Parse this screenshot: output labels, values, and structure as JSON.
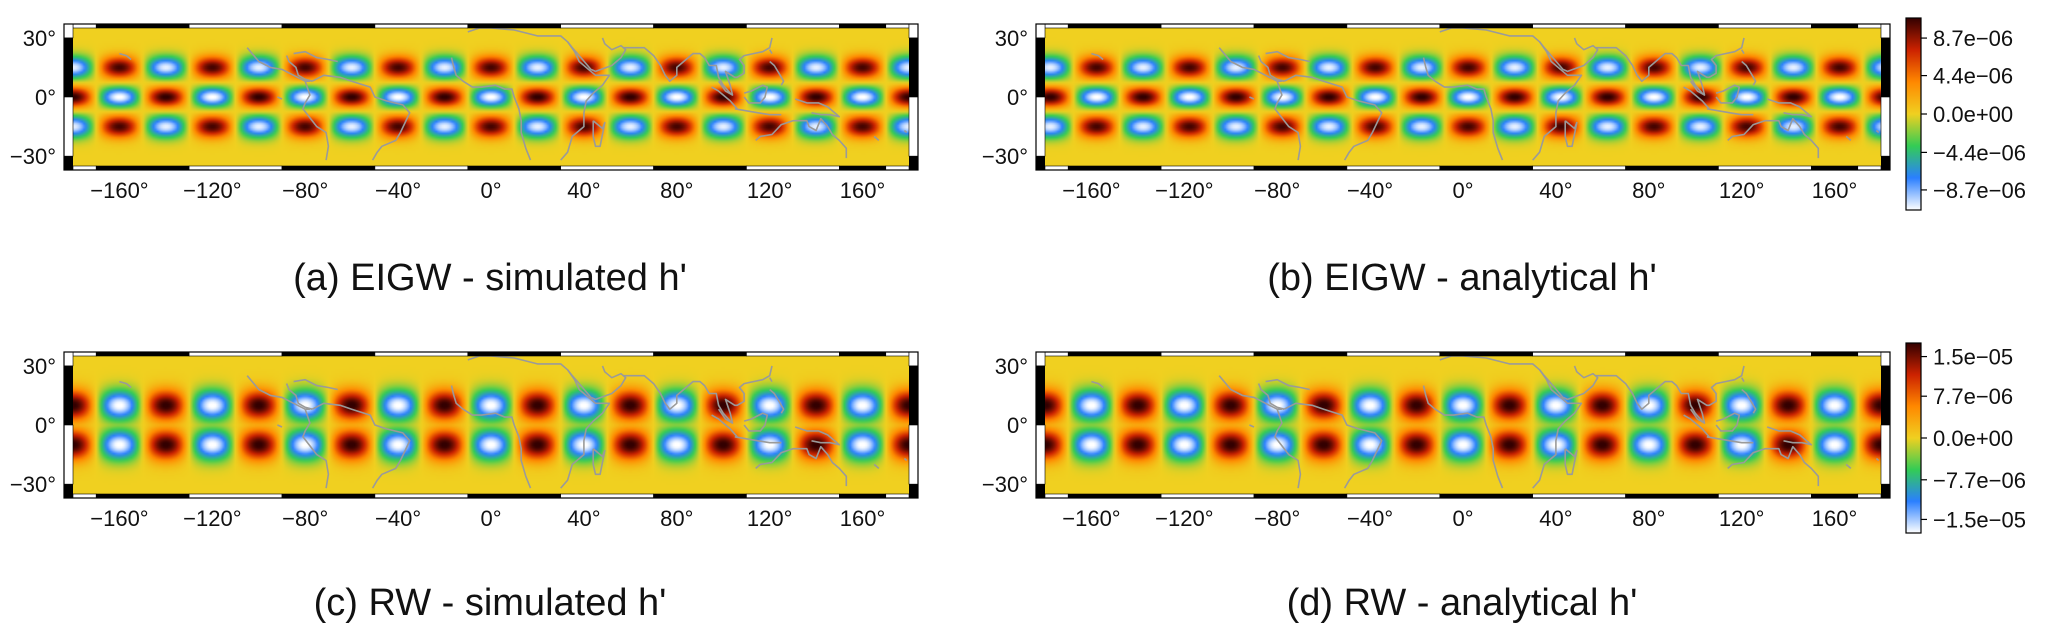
{
  "colors": {
    "colormap": [
      "#ffffff",
      "#2a7fff",
      "#33cc55",
      "#f0d020",
      "#ff8800",
      "#cc2200",
      "#330000"
    ],
    "coastline": "#9a9a9a",
    "frame": "#000000",
    "background": "#ffffff"
  },
  "chart_data": [
    {
      "type": "heatmap",
      "title": "(a) EIGW - simulated h'",
      "projection": "equirectangular",
      "mode": "EIGW",
      "wavenumber": 9,
      "phase_deg": 0,
      "xlim": [
        -180,
        180
      ],
      "ylim": [
        -35,
        35
      ],
      "x_ticks": [
        -160,
        -120,
        -80,
        -40,
        0,
        40,
        80,
        120,
        160
      ],
      "x_tick_labels": [
        "−160°",
        "−120°",
        "−80°",
        "−40°",
        "0°",
        "40°",
        "80°",
        "120°",
        "160°"
      ],
      "y_ticks": [
        30,
        0,
        -30
      ],
      "y_tick_labels": [
        "30°",
        "0°",
        "−30°"
      ],
      "colorbar": null
    },
    {
      "type": "heatmap",
      "title": "(b) EIGW - analytical h'",
      "projection": "equirectangular",
      "mode": "EIGW",
      "wavenumber": 9,
      "phase_deg": 20,
      "xlim": [
        -180,
        180
      ],
      "ylim": [
        -35,
        35
      ],
      "x_ticks": [
        -160,
        -120,
        -80,
        -40,
        0,
        40,
        80,
        120,
        160
      ],
      "x_tick_labels": [
        "−160°",
        "−120°",
        "−80°",
        "−40°",
        "0°",
        "40°",
        "80°",
        "120°",
        "160°"
      ],
      "y_ticks": [
        30,
        0,
        -30
      ],
      "y_tick_labels": [
        "30°",
        "0°",
        "−30°"
      ],
      "colorbar": {
        "ticks": [
          8.7e-06,
          4.4e-06,
          0.0,
          -4.4e-06,
          -8.7e-06
        ],
        "tick_labels": [
          "8.7e−06",
          "4.4e−06",
          "0.0e+00",
          "−4.4e−06",
          "−8.7e−06"
        ],
        "range": [
          -1.1e-05,
          1.1e-05
        ]
      }
    },
    {
      "type": "heatmap",
      "title": "(c) RW  - simulated h'",
      "projection": "equirectangular",
      "mode": "RW",
      "wavenumber": 9,
      "phase_deg": 0,
      "xlim": [
        -180,
        180
      ],
      "ylim": [
        -35,
        35
      ],
      "x_ticks": [
        -160,
        -120,
        -80,
        -40,
        0,
        40,
        80,
        120,
        160
      ],
      "x_tick_labels": [
        "−160°",
        "−120°",
        "−80°",
        "−40°",
        "0°",
        "40°",
        "80°",
        "120°",
        "160°"
      ],
      "y_ticks": [
        30,
        0,
        -30
      ],
      "y_tick_labels": [
        "30°",
        "0°",
        "−30°"
      ],
      "colorbar": null
    },
    {
      "type": "heatmap",
      "title": "(d) RW - analytical h'",
      "projection": "equirectangular",
      "mode": "RW",
      "wavenumber": 9,
      "phase_deg": 0,
      "xlim": [
        -180,
        180
      ],
      "ylim": [
        -35,
        35
      ],
      "x_ticks": [
        -160,
        -120,
        -80,
        -40,
        0,
        40,
        80,
        120,
        160
      ],
      "x_tick_labels": [
        "−160°",
        "−120°",
        "−80°",
        "−40°",
        "0°",
        "40°",
        "80°",
        "120°",
        "160°"
      ],
      "y_ticks": [
        30,
        0,
        -30
      ],
      "y_tick_labels": [
        "30°",
        "0°",
        "−30°"
      ],
      "colorbar": {
        "ticks": [
          1.5e-05,
          7.7e-06,
          0.0,
          -7.7e-06,
          -1.5e-05
        ],
        "tick_labels": [
          "1.5e−05",
          "7.7e−06",
          "0.0e+00",
          "−7.7e−06",
          "−1.5e−05"
        ],
        "range": [
          -1.75e-05,
          1.75e-05
        ]
      }
    }
  ]
}
